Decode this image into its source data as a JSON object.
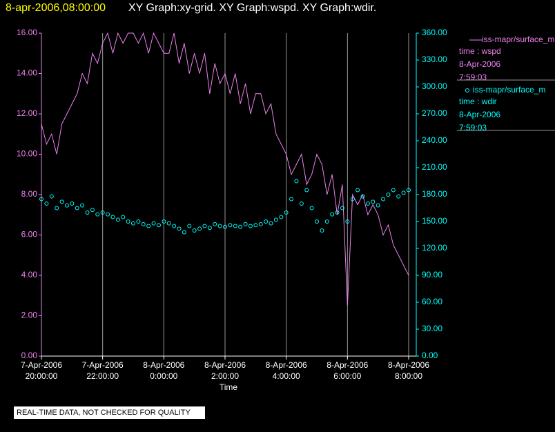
{
  "chart_data": {
    "type": "line",
    "timestamp": "8-apr-2006,08:00:00",
    "title": "XY Graph:xy-grid.  XY Graph:wspd.  XY Graph:wdir.",
    "x_label": "Time",
    "note": "REAL-TIME DATA, NOT CHECKED FOR QUALITY",
    "x": [
      "2006-04-07T20:00",
      "2006-04-07T20:10",
      "2006-04-07T20:20",
      "2006-04-07T20:30",
      "2006-04-07T20:40",
      "2006-04-07T20:50",
      "2006-04-07T21:00",
      "2006-04-07T21:10",
      "2006-04-07T21:20",
      "2006-04-07T21:30",
      "2006-04-07T21:40",
      "2006-04-07T21:50",
      "2006-04-07T22:00",
      "2006-04-07T22:10",
      "2006-04-07T22:20",
      "2006-04-07T22:30",
      "2006-04-07T22:40",
      "2006-04-07T22:50",
      "2006-04-07T23:00",
      "2006-04-07T23:10",
      "2006-04-07T23:20",
      "2006-04-07T23:30",
      "2006-04-07T23:40",
      "2006-04-07T23:50",
      "2006-04-08T00:00",
      "2006-04-08T00:10",
      "2006-04-08T00:20",
      "2006-04-08T00:30",
      "2006-04-08T00:40",
      "2006-04-08T00:50",
      "2006-04-08T01:00",
      "2006-04-08T01:10",
      "2006-04-08T01:20",
      "2006-04-08T01:30",
      "2006-04-08T01:40",
      "2006-04-08T01:50",
      "2006-04-08T02:00",
      "2006-04-08T02:10",
      "2006-04-08T02:20",
      "2006-04-08T02:30",
      "2006-04-08T02:40",
      "2006-04-08T02:50",
      "2006-04-08T03:00",
      "2006-04-08T03:10",
      "2006-04-08T03:20",
      "2006-04-08T03:30",
      "2006-04-08T03:40",
      "2006-04-08T03:50",
      "2006-04-08T04:00",
      "2006-04-08T04:10",
      "2006-04-08T04:20",
      "2006-04-08T04:30",
      "2006-04-08T04:40",
      "2006-04-08T04:50",
      "2006-04-08T05:00",
      "2006-04-08T05:10",
      "2006-04-08T05:20",
      "2006-04-08T05:30",
      "2006-04-08T05:40",
      "2006-04-08T05:50",
      "2006-04-08T06:00",
      "2006-04-08T06:10",
      "2006-04-08T06:20",
      "2006-04-08T06:30",
      "2006-04-08T06:40",
      "2006-04-08T06:50",
      "2006-04-08T07:00",
      "2006-04-08T07:10",
      "2006-04-08T07:20",
      "2006-04-08T07:30",
      "2006-04-08T07:40",
      "2006-04-08T07:50",
      "2006-04-08T08:00"
    ],
    "xlim": [
      "2006-04-07T20:00",
      "2006-04-08T08:00"
    ],
    "xticks": [
      {
        "value": "2006-04-07T20:00",
        "label": [
          "7-Apr-2006",
          "20:00:00"
        ]
      },
      {
        "value": "2006-04-07T22:00",
        "label": [
          "7-Apr-2006",
          "22:00:00"
        ]
      },
      {
        "value": "2006-04-08T00:00",
        "label": [
          "8-Apr-2006",
          "0:00:00"
        ]
      },
      {
        "value": "2006-04-08T02:00",
        "label": [
          "8-Apr-2006",
          "2:00:00"
        ]
      },
      {
        "value": "2006-04-08T04:00",
        "label": [
          "8-Apr-2006",
          "4:00:00"
        ]
      },
      {
        "value": "2006-04-08T06:00",
        "label": [
          "8-Apr-2006",
          "6:00:00"
        ]
      },
      {
        "value": "2006-04-08T08:00",
        "label": [
          "8-Apr-2006",
          "8:00:00"
        ]
      }
    ],
    "ylim": [
      0,
      16
    ],
    "yticks": [
      {
        "value": 0,
        "label": "0.00"
      },
      {
        "value": 2,
        "label": "2.00"
      },
      {
        "value": 4,
        "label": "4.00"
      },
      {
        "value": 6,
        "label": "6.00"
      },
      {
        "value": 8,
        "label": "8.00"
      },
      {
        "value": 10,
        "label": "10.00"
      },
      {
        "value": 12,
        "label": "12.00"
      },
      {
        "value": 14,
        "label": "14.00"
      },
      {
        "value": 16,
        "label": "16.00"
      }
    ],
    "y2lim": [
      0,
      360
    ],
    "y2ticks": [
      {
        "value": 0,
        "label": "0.00"
      },
      {
        "value": 30,
        "label": "30.00"
      },
      {
        "value": 60,
        "label": "60.00"
      },
      {
        "value": 90,
        "label": "90.00"
      },
      {
        "value": 120,
        "label": "120.00"
      },
      {
        "value": 150,
        "label": "150.00"
      },
      {
        "value": 180,
        "label": "180.00"
      },
      {
        "value": 210,
        "label": "210.00"
      },
      {
        "value": 240,
        "label": "240.00"
      },
      {
        "value": 270,
        "label": "270.00"
      },
      {
        "value": 300,
        "label": "300.00"
      },
      {
        "value": 330,
        "label": "330.00"
      },
      {
        "value": 360,
        "label": "360.00"
      }
    ],
    "xgrid": true,
    "series": [
      {
        "name": "iss-mapr/surface_m",
        "color": "#ee82ee",
        "axis": "y",
        "mark": "line",
        "legend_lines": [
          "time : wspd",
          "8-Apr-2006",
          "7:59:03"
        ],
        "values": [
          11.5,
          10.5,
          11,
          10,
          11.5,
          12,
          12.5,
          13,
          14,
          13.5,
          15,
          14.5,
          15.5,
          16,
          15,
          16,
          15.5,
          16,
          16,
          15.5,
          16,
          15,
          16,
          15.5,
          15,
          15,
          16,
          14.5,
          15.5,
          14,
          15,
          14,
          15,
          13,
          14.5,
          13.5,
          14,
          13,
          14,
          12.5,
          13.5,
          12,
          13,
          13,
          12,
          12.5,
          11,
          10.5,
          10,
          9,
          9.5,
          10,
          8.5,
          9,
          10,
          9.5,
          8,
          9,
          7,
          8.5,
          2.5,
          8,
          7.5,
          8,
          7,
          7.5,
          7,
          6,
          6.5,
          5.5,
          5,
          4.5,
          4
        ]
      },
      {
        "name": "iss-mapr/surface_m",
        "color": "#00ffff",
        "axis": "y2",
        "mark": "circle",
        "legend_lines": [
          "time : wdir",
          "8-Apr-2006",
          "7:59:03"
        ],
        "values": [
          175,
          170,
          178,
          165,
          172,
          168,
          170,
          165,
          168,
          160,
          163,
          158,
          160,
          158,
          155,
          152,
          155,
          150,
          148,
          150,
          147,
          145,
          148,
          146,
          150,
          148,
          145,
          142,
          138,
          145,
          140,
          142,
          145,
          143,
          147,
          145,
          144,
          146,
          145,
          144,
          147,
          145,
          146,
          147,
          150,
          148,
          152,
          155,
          160,
          175,
          195,
          170,
          185,
          165,
          150,
          140,
          150,
          158,
          160,
          165,
          150,
          175,
          185,
          178,
          170,
          172,
          168,
          175,
          180,
          185,
          178,
          182,
          185
        ]
      }
    ]
  }
}
